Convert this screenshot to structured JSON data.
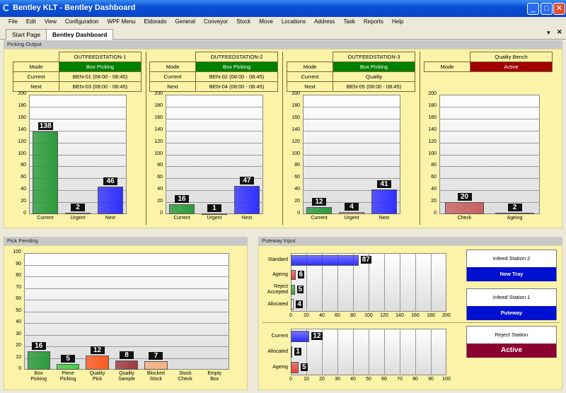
{
  "window": {
    "title": "Bentley KLT - Bentley Dashboard",
    "controls": [
      "minimize",
      "maximize",
      "close"
    ]
  },
  "menu": [
    "File",
    "Edit",
    "View",
    "Configuration",
    "WPF Menu",
    "Eldorado",
    "General",
    "Conveyor",
    "Stock",
    "Move",
    "Locations",
    "Address",
    "Task",
    "Reports",
    "Help"
  ],
  "tabs": [
    {
      "label": "Start Page"
    },
    {
      "label": "Bentley Dashboard",
      "active": true
    }
  ],
  "picking_output": {
    "title": "Picking Output",
    "stations": [
      {
        "name": "OUTFEEDSTATION-1",
        "rows": [
          [
            "Mode",
            "Box Picking"
          ],
          [
            "Current",
            "BEN-01 (08:00 - 08:45)"
          ],
          [
            "Next",
            "BEN-03 (08:00 - 08:45)"
          ]
        ],
        "mode_color": "#008000"
      },
      {
        "name": "OUTFEEDSTATION-2",
        "rows": [
          [
            "Mode",
            "Box Picking"
          ],
          [
            "Current",
            "BEN-02 (08:00 - 08:45)"
          ],
          [
            "Next",
            "BEN-04 (08:00 - 08:45)"
          ]
        ],
        "mode_color": "#008000"
      },
      {
        "name": "OUTFEEDSTATION-3",
        "rows": [
          [
            "Mode",
            "Box Picking"
          ],
          [
            "Current",
            "Quality"
          ],
          [
            "Next",
            "BEN-05 (08:00 - 08:45)"
          ]
        ],
        "mode_color": "#008000"
      },
      {
        "name": "Quality Bench",
        "rows": [
          [
            "Mode",
            "Active"
          ]
        ],
        "mode_color": "#a00000"
      }
    ]
  },
  "chart_data": [
    {
      "type": "bar",
      "id": "station1",
      "categories": [
        "Current",
        "Urgent",
        "Next"
      ],
      "values": [
        138,
        2,
        46
      ],
      "ylim": [
        0,
        200
      ],
      "yticks": [
        0,
        20,
        40,
        60,
        80,
        100,
        120,
        140,
        160,
        180,
        200
      ],
      "colors": [
        "#2a9a3a",
        "#f0a0a0",
        "#3030ff"
      ]
    },
    {
      "type": "bar",
      "id": "station2",
      "categories": [
        "Current",
        "Urgent",
        "Next"
      ],
      "values": [
        16,
        1,
        47
      ],
      "ylim": [
        0,
        200
      ],
      "yticks": [
        0,
        20,
        40,
        60,
        80,
        100,
        120,
        140,
        160,
        180,
        200
      ],
      "colors": [
        "#2a9a3a",
        "#f0a0a0",
        "#3030ff"
      ]
    },
    {
      "type": "bar",
      "id": "station3",
      "categories": [
        "Current",
        "Urgent",
        "Next"
      ],
      "values": [
        12,
        4,
        41
      ],
      "ylim": [
        0,
        200
      ],
      "yticks": [
        0,
        20,
        40,
        60,
        80,
        100,
        120,
        140,
        160,
        180,
        200
      ],
      "colors": [
        "#2a9a3a",
        "#f0a0a0",
        "#3030ff"
      ]
    },
    {
      "type": "bar",
      "id": "quality",
      "categories": [
        "Check",
        "Ageing"
      ],
      "values": [
        20,
        2
      ],
      "ylim": [
        0,
        200
      ],
      "yticks": [
        0,
        20,
        40,
        60,
        80,
        100,
        120,
        140,
        160,
        180,
        200
      ],
      "colors": [
        "#c86060",
        "#f0c0c0"
      ]
    },
    {
      "type": "bar",
      "id": "pick_pending",
      "title": "Pick Pending",
      "categories": [
        "Box\nPicking",
        "Piece\nPicking",
        "Quality\nPick",
        "Quality\nSample",
        "Blocked\nStock",
        "Stock\nCheck",
        "Empty\nBox"
      ],
      "values": [
        16,
        5,
        12,
        8,
        7,
        0,
        0
      ],
      "ylim": [
        0,
        100
      ],
      "yticks": [
        0,
        10,
        20,
        30,
        40,
        50,
        60,
        70,
        80,
        90,
        100
      ],
      "colors": [
        "#2a9a3a",
        "#40d040",
        "#ff5a20",
        "#a03840",
        "#f8b080",
        "#ccc",
        "#ccc"
      ]
    },
    {
      "type": "bar",
      "orientation": "horizontal",
      "id": "putaway1",
      "categories": [
        "Standard",
        "Ageing",
        "Reject\nAccepted",
        "Allocated"
      ],
      "values": [
        87,
        6,
        5,
        4
      ],
      "xlim": [
        0,
        200
      ],
      "xticks": [
        0,
        20,
        40,
        60,
        80,
        100,
        120,
        140,
        160,
        180,
        200
      ],
      "colors": [
        "#3030ff",
        "#e84040",
        "#40a040",
        "#ffffff"
      ]
    },
    {
      "type": "bar",
      "orientation": "horizontal",
      "id": "putaway2",
      "categories": [
        "Current",
        "Allocated",
        "Ageing"
      ],
      "values": [
        12,
        1,
        5
      ],
      "xlim": [
        0,
        100
      ],
      "xticks": [
        0,
        10,
        20,
        30,
        40,
        50,
        60,
        70,
        80,
        90,
        100
      ],
      "colors": [
        "#3030ff",
        "#ffffff",
        "#e84040"
      ]
    }
  ],
  "pick_pending": {
    "title": "Pick Pending"
  },
  "putaway": {
    "title": "Puteway Input",
    "cards": [
      {
        "title": "Infeed Station 2",
        "status": "New Tray",
        "color": "#0010d0"
      },
      {
        "title": "Infeed Station 1",
        "status": "Puteway",
        "color": "#0010d0"
      },
      {
        "title": "Reject Station",
        "status": "Active",
        "color": "#8a0030"
      }
    ]
  }
}
